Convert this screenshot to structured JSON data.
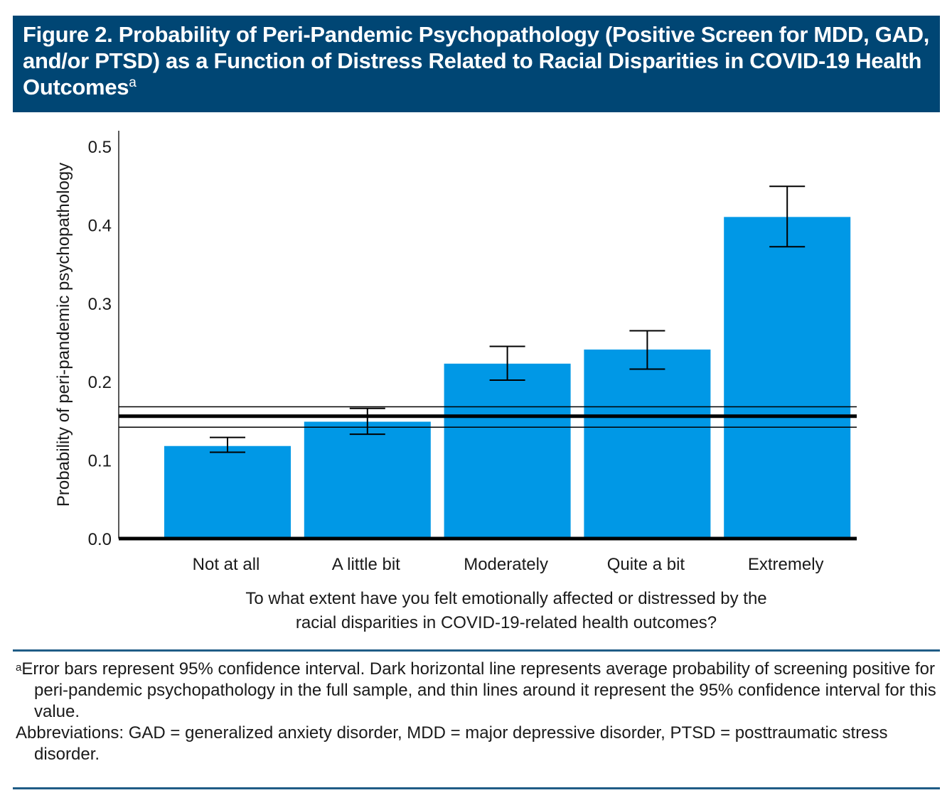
{
  "title": {
    "text": "Figure 2. Probability of Peri-Pandemic Psychopathology (Positive Screen for MDD, GAD, and/or PTSD) as a Function of Distress Related to Racial Disparities in COVID-19 Health Outcomes",
    "superscript": "a",
    "background": "#004674"
  },
  "chart_data": {
    "type": "bar",
    "title": "",
    "xlabel": "To what extent have you felt emotionally affected or distressed by the racial disparities in COVID-19-related health outcomes?",
    "xlabel_lines": [
      "To what extent have you felt emotionally affected or distressed by the",
      "racial disparities in COVID-19-related health outcomes?"
    ],
    "ylabel": "Probability of peri-pandemic psychopathology",
    "ylim": [
      0,
      0.5
    ],
    "yticks": [
      0.0,
      0.1,
      0.2,
      0.3,
      0.4,
      0.5
    ],
    "ytick_labels": [
      "0.0",
      "0.1",
      "0.2",
      "0.3",
      "0.4",
      "0.5"
    ],
    "grid": false,
    "bar_color": "#0098e6",
    "categories": [
      "Not at all",
      "A little bit",
      "Moderately",
      "Quite a bit",
      "Extremely"
    ],
    "values": [
      0.118,
      0.149,
      0.223,
      0.241,
      0.41
    ],
    "error_bars": {
      "type": "95% CI",
      "lower": [
        0.11,
        0.133,
        0.202,
        0.216,
        0.372
      ],
      "upper": [
        0.129,
        0.166,
        0.245,
        0.265,
        0.449
      ]
    },
    "reference_line": {
      "label": "Average probability in full sample",
      "value": 0.156,
      "ci_lower": 0.142,
      "ci_upper": 0.168
    }
  },
  "notes": {
    "footnote_marker": "a",
    "footnote": "Error bars represent 95% confidence interval. Dark horizontal line represents average probability of screening positive for peri-pandemic psychopathology in the full sample, and thin lines around it represent the 95% confidence interval for this value.",
    "abbreviations": "Abbreviations: GAD = generalized anxiety disorder, MDD = major depressive disorder, PTSD = posttraumatic stress disorder."
  }
}
